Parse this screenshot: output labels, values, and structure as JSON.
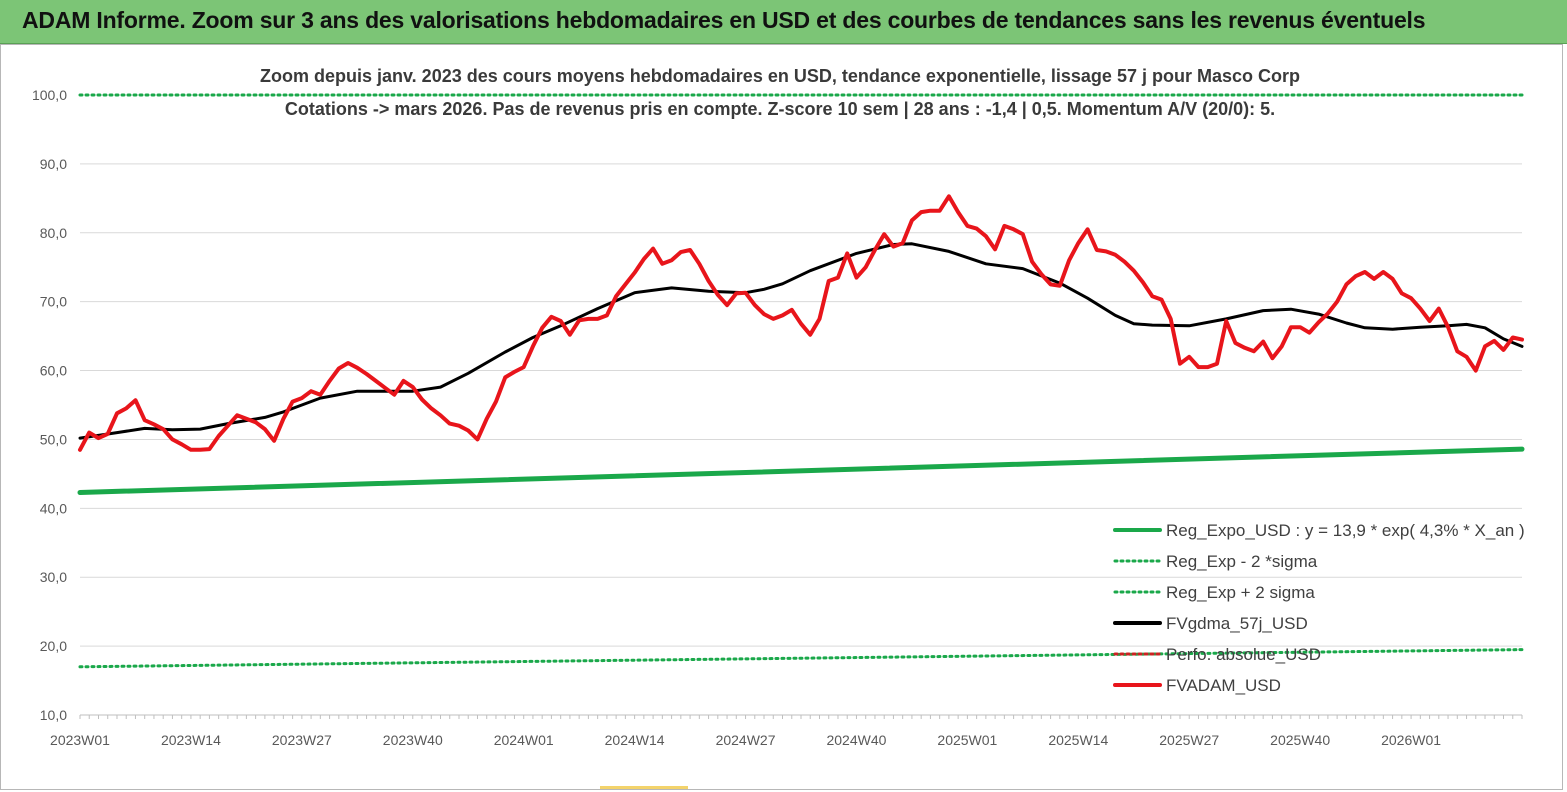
{
  "banner": {
    "title": "ADAM Informe. Zoom sur 3 ans des valorisations hebdomadaires en USD et des courbes de tendances sans les revenus éventuels"
  },
  "colors": {
    "banner": "#7cc576",
    "reg": "#1aa84a",
    "fv": "#000000",
    "adam": "#e8151b",
    "perfo": "#cc2222"
  },
  "chart_data": {
    "type": "line",
    "title_line1": "Zoom depuis janv. 2023 des cours moyens hebdomadaires en USD, tendance exponentielle, lissage 57 j pour Masco Corp",
    "title_line2": "Cotations -> mars 2026. Pas de revenus pris en compte. Z-score 10 sem | 28 ans : -1,4 | 0,5. Momentum A/V (20/0): 5.",
    "ylim": [
      10,
      100
    ],
    "y_ticks": [
      "100,0",
      "90,0",
      "80,0",
      "70,0",
      "60,0",
      "50,0",
      "40,0",
      "30,0",
      "20,0",
      "10,0"
    ],
    "y_tick_values": [
      100,
      90,
      80,
      70,
      60,
      50,
      40,
      30,
      20,
      10
    ],
    "x_range": [
      0,
      156
    ],
    "x_ticks": [
      "2023W01",
      "2023W14",
      "2023W27",
      "2023W40",
      "2024W01",
      "2024W14",
      "2024W27",
      "2024W40",
      "2025W01",
      "2025W14",
      "2025W27",
      "2025W40",
      "2026W01"
    ],
    "x_tick_index": [
      0,
      12,
      24,
      36,
      48,
      60,
      72,
      84,
      96,
      108,
      120,
      132,
      144
    ],
    "legend": [
      {
        "label": "Reg_Expo_USD : y = 13,9 * exp( 4,3% *  X_an )",
        "style": "solid",
        "color": "#1aa84a"
      },
      {
        "label": "Reg_Exp - 2 *sigma",
        "style": "dotted",
        "color": "#1aa84a"
      },
      {
        "label": "Reg_Exp + 2 sigma",
        "style": "dotted",
        "color": "#1aa84a"
      },
      {
        "label": "FVgdma_57j_USD",
        "style": "solid",
        "color": "#000000"
      },
      {
        "label": "Perfo. absolue_USD",
        "style": "dotted",
        "color": "#cc2222"
      },
      {
        "label": "FVADAM_USD",
        "style": "solid",
        "color": "#e8151b"
      }
    ],
    "series": [
      {
        "name": "Reg_Expo_USD",
        "points": [
          [
            0,
            42.3
          ],
          [
            156,
            48.6
          ]
        ]
      },
      {
        "name": "Reg_Exp - 2 *sigma",
        "points": [
          [
            0,
            17.0
          ],
          [
            156,
            19.5
          ]
        ]
      },
      {
        "name": "Reg_Exp + 2 sigma",
        "points": [
          [
            0,
            100
          ],
          [
            156,
            100
          ]
        ]
      },
      {
        "name": "FVgdma_57j_USD",
        "points": [
          [
            0,
            50.2
          ],
          [
            4,
            51.0
          ],
          [
            7,
            51.6
          ],
          [
            10,
            51.4
          ],
          [
            13,
            51.5
          ],
          [
            16,
            52.3
          ],
          [
            20,
            53.2
          ],
          [
            22,
            54.0
          ],
          [
            26,
            56.0
          ],
          [
            30,
            57.0
          ],
          [
            36,
            57.0
          ],
          [
            39,
            57.6
          ],
          [
            42,
            59.6
          ],
          [
            46,
            62.7
          ],
          [
            49,
            64.8
          ],
          [
            52,
            66.5
          ],
          [
            56,
            69.0
          ],
          [
            60,
            71.3
          ],
          [
            64,
            72.0
          ],
          [
            68,
            71.5
          ],
          [
            72,
            71.3
          ],
          [
            74,
            71.8
          ],
          [
            76,
            72.6
          ],
          [
            79,
            74.5
          ],
          [
            84,
            77.0
          ],
          [
            88,
            78.3
          ],
          [
            90,
            78.4
          ],
          [
            94,
            77.3
          ],
          [
            98,
            75.5
          ],
          [
            102,
            74.8
          ],
          [
            106,
            72.7
          ],
          [
            109,
            70.5
          ],
          [
            112,
            68.0
          ],
          [
            114,
            66.8
          ],
          [
            116,
            66.6
          ],
          [
            120,
            66.5
          ],
          [
            124,
            67.5
          ],
          [
            128,
            68.7
          ],
          [
            131,
            68.9
          ],
          [
            134,
            68.2
          ],
          [
            137,
            66.9
          ],
          [
            139,
            66.2
          ],
          [
            142,
            66.0
          ],
          [
            145,
            66.3
          ],
          [
            148,
            66.5
          ],
          [
            150,
            66.7
          ],
          [
            152,
            66.2
          ],
          [
            154,
            64.6
          ],
          [
            156,
            63.5
          ]
        ]
      },
      {
        "name": "FVADAM_USD",
        "points": [
          [
            0,
            48.5
          ],
          [
            1,
            51.0
          ],
          [
            2,
            50.2
          ],
          [
            3,
            50.8
          ],
          [
            4,
            53.8
          ],
          [
            5,
            54.5
          ],
          [
            6,
            55.7
          ],
          [
            7,
            52.8
          ],
          [
            8,
            52.2
          ],
          [
            9,
            51.5
          ],
          [
            10,
            50.0
          ],
          [
            11,
            49.3
          ],
          [
            12,
            48.5
          ],
          [
            13,
            48.5
          ],
          [
            14,
            48.6
          ],
          [
            15,
            50.5
          ],
          [
            16,
            52.0
          ],
          [
            17,
            53.5
          ],
          [
            18,
            53.0
          ],
          [
            19,
            52.5
          ],
          [
            20,
            51.5
          ],
          [
            21,
            49.8
          ],
          [
            22,
            53.0
          ],
          [
            23,
            55.5
          ],
          [
            24,
            56.0
          ],
          [
            25,
            57.0
          ],
          [
            26,
            56.5
          ],
          [
            27,
            58.5
          ],
          [
            28,
            60.3
          ],
          [
            29,
            61.1
          ],
          [
            30,
            60.4
          ],
          [
            31,
            59.5
          ],
          [
            32,
            58.5
          ],
          [
            33,
            57.5
          ],
          [
            34,
            56.5
          ],
          [
            35,
            58.5
          ],
          [
            36,
            57.6
          ],
          [
            37,
            55.8
          ],
          [
            38,
            54.5
          ],
          [
            39,
            53.5
          ],
          [
            40,
            52.3
          ],
          [
            41,
            52.0
          ],
          [
            42,
            51.3
          ],
          [
            43,
            50.0
          ],
          [
            44,
            53.0
          ],
          [
            45,
            55.5
          ],
          [
            46,
            59.0
          ],
          [
            47,
            59.8
          ],
          [
            48,
            60.5
          ],
          [
            49,
            63.5
          ],
          [
            50,
            66.2
          ],
          [
            51,
            67.8
          ],
          [
            52,
            67.2
          ],
          [
            53,
            65.2
          ],
          [
            54,
            67.3
          ],
          [
            55,
            67.5
          ],
          [
            56,
            67.5
          ],
          [
            57,
            68.0
          ],
          [
            58,
            70.8
          ],
          [
            59,
            72.5
          ],
          [
            60,
            74.2
          ],
          [
            61,
            76.2
          ],
          [
            62,
            77.7
          ],
          [
            63,
            75.5
          ],
          [
            64,
            76.0
          ],
          [
            65,
            77.2
          ],
          [
            66,
            77.5
          ],
          [
            67,
            75.5
          ],
          [
            68,
            73.0
          ],
          [
            69,
            71.0
          ],
          [
            70,
            69.5
          ],
          [
            71,
            71.2
          ],
          [
            72,
            71.3
          ],
          [
            73,
            69.5
          ],
          [
            74,
            68.2
          ],
          [
            75,
            67.5
          ],
          [
            76,
            68.0
          ],
          [
            77,
            68.8
          ],
          [
            78,
            66.8
          ],
          [
            79,
            65.2
          ],
          [
            80,
            67.5
          ],
          [
            81,
            73.0
          ],
          [
            82,
            73.5
          ],
          [
            83,
            77.0
          ],
          [
            84,
            73.5
          ],
          [
            85,
            75.0
          ],
          [
            86,
            77.5
          ],
          [
            87,
            79.8
          ],
          [
            88,
            78.0
          ],
          [
            89,
            78.5
          ],
          [
            90,
            81.8
          ],
          [
            91,
            83.0
          ],
          [
            92,
            83.2
          ],
          [
            93,
            83.2
          ],
          [
            94,
            85.3
          ],
          [
            95,
            83.0
          ],
          [
            96,
            81.0
          ],
          [
            97,
            80.6
          ],
          [
            98,
            79.5
          ],
          [
            99,
            77.6
          ],
          [
            100,
            81.0
          ],
          [
            101,
            80.5
          ],
          [
            102,
            79.8
          ],
          [
            103,
            75.8
          ],
          [
            104,
            74.0
          ],
          [
            105,
            72.5
          ],
          [
            106,
            72.3
          ],
          [
            107,
            76.0
          ],
          [
            108,
            78.5
          ],
          [
            109,
            80.5
          ],
          [
            110,
            77.5
          ],
          [
            111,
            77.3
          ],
          [
            112,
            76.8
          ],
          [
            113,
            75.8
          ],
          [
            114,
            74.5
          ],
          [
            115,
            72.8
          ],
          [
            116,
            70.8
          ],
          [
            117,
            70.3
          ],
          [
            118,
            67.5
          ],
          [
            119,
            61.0
          ],
          [
            120,
            62.0
          ],
          [
            121,
            60.5
          ],
          [
            122,
            60.5
          ],
          [
            123,
            61.0
          ],
          [
            124,
            67.2
          ],
          [
            125,
            64.0
          ],
          [
            126,
            63.3
          ],
          [
            127,
            62.8
          ],
          [
            128,
            64.2
          ],
          [
            129,
            61.8
          ],
          [
            130,
            63.5
          ],
          [
            131,
            66.3
          ],
          [
            132,
            66.3
          ],
          [
            133,
            65.5
          ],
          [
            134,
            67.0
          ],
          [
            135,
            68.3
          ],
          [
            136,
            70.0
          ],
          [
            137,
            72.5
          ],
          [
            138,
            73.7
          ],
          [
            139,
            74.3
          ],
          [
            140,
            73.3
          ],
          [
            141,
            74.3
          ],
          [
            142,
            73.3
          ],
          [
            143,
            71.2
          ],
          [
            144,
            70.5
          ],
          [
            145,
            69.0
          ],
          [
            146,
            67.2
          ],
          [
            147,
            69.0
          ],
          [
            148,
            66.3
          ],
          [
            149,
            62.8
          ],
          [
            150,
            62.0
          ],
          [
            151,
            60.0
          ],
          [
            152,
            63.5
          ],
          [
            153,
            64.3
          ],
          [
            154,
            63.0
          ],
          [
            155,
            64.8
          ],
          [
            156,
            64.5
          ]
        ]
      }
    ]
  }
}
